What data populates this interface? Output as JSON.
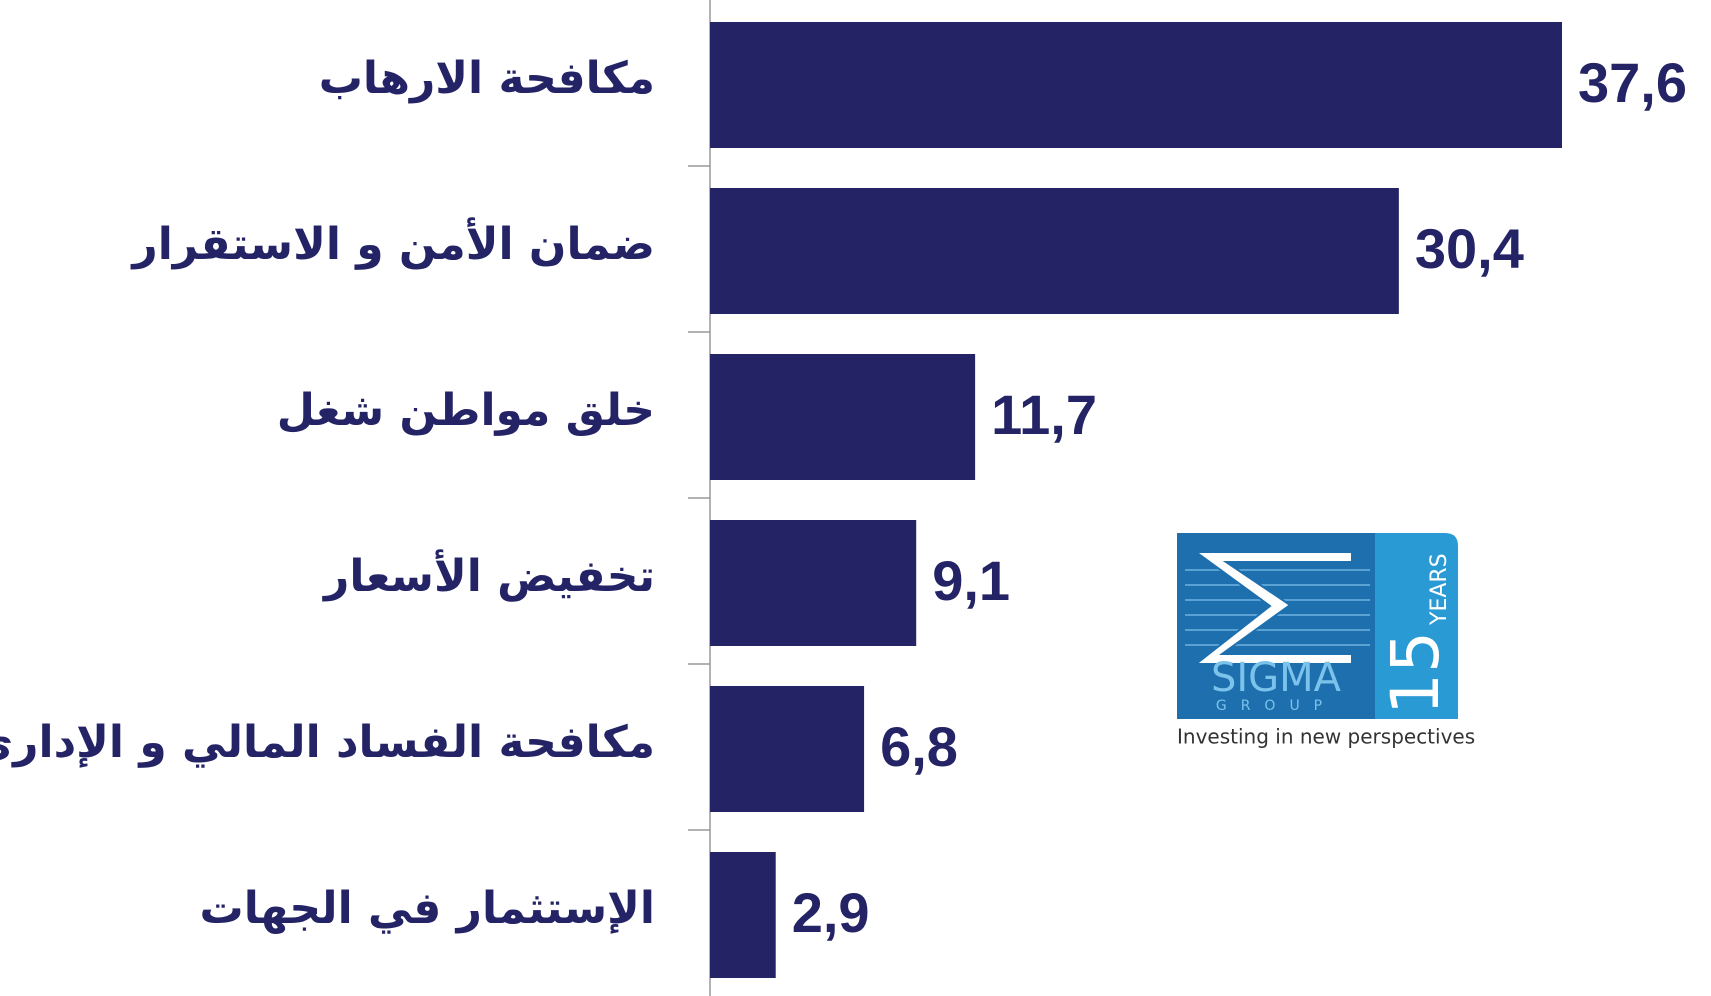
{
  "chart_data": {
    "type": "bar",
    "orientation": "horizontal",
    "categories": [
      "مكافحة الارهاب",
      "ضمان الأمن و الاستقرار",
      "خلق مواطن شغل",
      "تخفيض الأسعار",
      "مكافحة الفساد المالي و الإداري",
      "الإستثمار في الجهات"
    ],
    "values": [
      37.6,
      30.4,
      11.7,
      9.1,
      6.8,
      2.9
    ],
    "value_labels": [
      "37,6",
      "30,4",
      "11,7",
      "9,1",
      "6,8",
      "2,9"
    ],
    "color": "#232366"
  },
  "logo": {
    "name": "SIGMA",
    "sub": "GROUP",
    "years_number": "15",
    "years_label": "YEARS",
    "tagline": "Investing in new perspectives"
  }
}
